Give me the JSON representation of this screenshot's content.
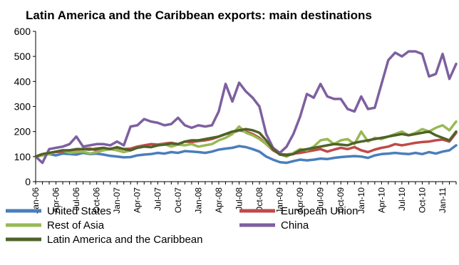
{
  "chart_data": {
    "type": "line",
    "title": "Latin America and the Caribbean exports: main destinations",
    "xlabel": "",
    "ylabel": "",
    "ylim": [
      0,
      600
    ],
    "yticks": [
      0,
      100,
      200,
      300,
      400,
      500,
      600
    ],
    "grid": false,
    "legend_position": "bottom",
    "x_tick_labels": [
      "Jan-06",
      "Apr-06",
      "Jul-06",
      "Oct-06",
      "Jan-07",
      "Apr-07",
      "Jul-07",
      "Oct-07",
      "Jan-08",
      "Apr-08",
      "Jul-08",
      "Oct-08",
      "Jan-09",
      "Apr-09",
      "Jul-09",
      "Oct-09",
      "Jan-10",
      "Apr-10",
      "Jul-10",
      "Oct-10",
      "Jan-11"
    ],
    "x": [
      "Jan-06",
      "Feb-06",
      "Mar-06",
      "Apr-06",
      "May-06",
      "Jun-06",
      "Jul-06",
      "Aug-06",
      "Sep-06",
      "Oct-06",
      "Nov-06",
      "Dec-06",
      "Jan-07",
      "Feb-07",
      "Mar-07",
      "Apr-07",
      "May-07",
      "Jun-07",
      "Jul-07",
      "Aug-07",
      "Sep-07",
      "Oct-07",
      "Nov-07",
      "Dec-07",
      "Jan-08",
      "Feb-08",
      "Mar-08",
      "Apr-08",
      "May-08",
      "Jun-08",
      "Jul-08",
      "Aug-08",
      "Sep-08",
      "Oct-08",
      "Nov-08",
      "Dec-08",
      "Jan-09",
      "Feb-09",
      "Mar-09",
      "Apr-09",
      "May-09",
      "Jun-09",
      "Jul-09",
      "Aug-09",
      "Sep-09",
      "Oct-09",
      "Nov-09",
      "Dec-09",
      "Jan-10",
      "Feb-10",
      "Mar-10",
      "Apr-10",
      "May-10",
      "Jun-10",
      "Jul-10",
      "Aug-10",
      "Sep-10",
      "Oct-10",
      "Nov-10",
      "Dec-10",
      "Jan-11",
      "Feb-11",
      "Mar-11"
    ],
    "series": [
      {
        "name": "United States",
        "color": "#4a7ebb",
        "values": [
          100,
          105,
          110,
          105,
          112,
          110,
          108,
          115,
          110,
          112,
          108,
          103,
          100,
          97,
          98,
          105,
          108,
          110,
          115,
          112,
          118,
          115,
          122,
          120,
          118,
          115,
          120,
          128,
          132,
          135,
          142,
          138,
          130,
          120,
          100,
          88,
          78,
          75,
          82,
          88,
          85,
          88,
          92,
          90,
          95,
          98,
          100,
          102,
          100,
          95,
          105,
          110,
          112,
          115,
          112,
          110,
          115,
          110,
          118,
          112,
          120,
          125,
          145
        ]
      },
      {
        "name": "European Union",
        "color": "#be4b48",
        "values": [
          100,
          110,
          115,
          118,
          120,
          125,
          128,
          130,
          132,
          125,
          128,
          132,
          135,
          130,
          132,
          140,
          145,
          150,
          148,
          152,
          155,
          150,
          160,
          158,
          162,
          165,
          170,
          180,
          190,
          195,
          205,
          200,
          190,
          175,
          150,
          125,
          110,
          108,
          112,
          115,
          120,
          125,
          130,
          120,
          128,
          135,
          130,
          138,
          125,
          118,
          128,
          135,
          140,
          150,
          145,
          150,
          155,
          158,
          160,
          165,
          168,
          160,
          195
        ]
      },
      {
        "name": "Rest of Asia",
        "color": "#98b954",
        "values": [
          100,
          105,
          110,
          120,
          125,
          115,
          118,
          120,
          112,
          118,
          125,
          130,
          125,
          118,
          125,
          135,
          140,
          138,
          145,
          150,
          140,
          148,
          145,
          150,
          140,
          145,
          150,
          165,
          175,
          190,
          220,
          195,
          185,
          170,
          150,
          130,
          110,
          100,
          115,
          130,
          125,
          140,
          165,
          170,
          150,
          165,
          170,
          150,
          200,
          160,
          175,
          170,
          180,
          190,
          200,
          185,
          195,
          210,
          200,
          215,
          225,
          205,
          240
        ]
      },
      {
        "name": "China",
        "color": "#7d60a0",
        "values": [
          100,
          75,
          130,
          135,
          140,
          150,
          180,
          140,
          145,
          150,
          150,
          145,
          160,
          145,
          220,
          225,
          250,
          240,
          235,
          225,
          230,
          255,
          225,
          215,
          225,
          220,
          225,
          280,
          390,
          320,
          395,
          360,
          335,
          300,
          190,
          135,
          115,
          140,
          190,
          260,
          350,
          335,
          390,
          340,
          330,
          330,
          290,
          280,
          340,
          290,
          295,
          390,
          485,
          515,
          500,
          520,
          520,
          510,
          420,
          430,
          510,
          410,
          470
        ]
      },
      {
        "name": "Latin America and the Caribbean",
        "color": "#4f6228",
        "values": [
          100,
          110,
          115,
          120,
          125,
          125,
          130,
          130,
          128,
          132,
          135,
          130,
          138,
          130,
          125,
          135,
          140,
          138,
          145,
          148,
          152,
          150,
          160,
          165,
          165,
          170,
          175,
          180,
          190,
          200,
          205,
          210,
          205,
          195,
          165,
          130,
          108,
          105,
          110,
          125,
          130,
          135,
          140,
          145,
          150,
          148,
          145,
          155,
          160,
          165,
          170,
          175,
          180,
          185,
          190,
          185,
          190,
          195,
          200,
          185,
          175,
          165,
          200
        ]
      }
    ]
  }
}
